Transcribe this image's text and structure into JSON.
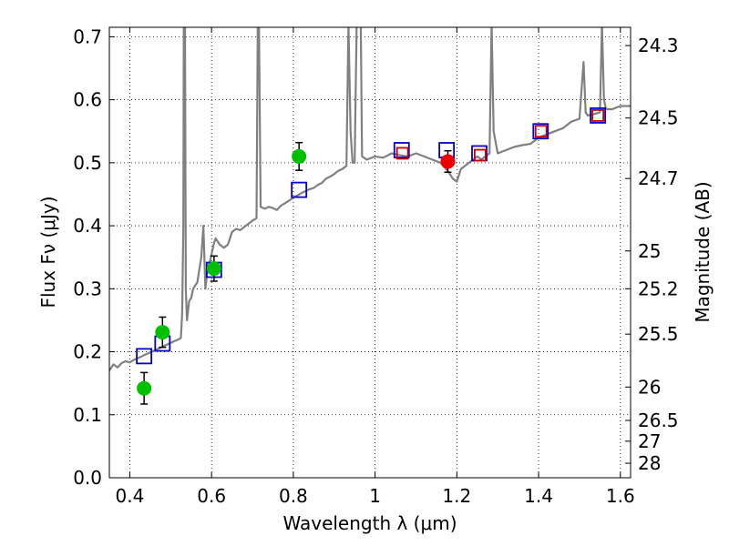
{
  "chart_data": {
    "type": "scatter",
    "xlabel": "Wavelength  λ (μm)",
    "ylabel": "Flux  Fν  (μJy)",
    "y2label": "Magnitude (AB)",
    "xlim": [
      0.35,
      1.625
    ],
    "ylim": [
      0.0,
      0.715
    ],
    "grid": true,
    "x_ticks": [
      0.4,
      0.6,
      0.8,
      1.0,
      1.2,
      1.4,
      1.6
    ],
    "x_tick_labels": [
      "0.4",
      "0.6",
      "0.8",
      "1",
      "1.2",
      "1.4",
      "1.6"
    ],
    "y_ticks": [
      0.0,
      0.1,
      0.2,
      0.3,
      0.4,
      0.5,
      0.6,
      0.7
    ],
    "y_tick_labels": [
      "0.0",
      "0.1",
      "0.2",
      "0.3",
      "0.4",
      "0.5",
      "0.6",
      "0.7"
    ],
    "y2_ticks": [
      {
        "label": "24.3",
        "flux": 0.686
      },
      {
        "label": "24.5",
        "flux": 0.571
      },
      {
        "label": "24.7",
        "flux": 0.475
      },
      {
        "label": "25",
        "flux": 0.36
      },
      {
        "label": "25.2",
        "flux": 0.3
      },
      {
        "label": "25.5",
        "flux": 0.228
      },
      {
        "label": "26",
        "flux": 0.144
      },
      {
        "label": "26.5",
        "flux": 0.091
      },
      {
        "label": "27",
        "flux": 0.058
      },
      {
        "label": "28",
        "flux": 0.023
      }
    ],
    "series": [
      {
        "name": "model spectrum",
        "kind": "line",
        "color": "#808080",
        "points": [
          [
            0.35,
            0.17
          ],
          [
            0.36,
            0.18
          ],
          [
            0.37,
            0.175
          ],
          [
            0.38,
            0.182
          ],
          [
            0.39,
            0.185
          ],
          [
            0.4,
            0.183
          ],
          [
            0.41,
            0.187
          ],
          [
            0.42,
            0.19
          ],
          [
            0.43,
            0.193
          ],
          [
            0.44,
            0.196
          ],
          [
            0.45,
            0.199
          ],
          [
            0.46,
            0.202
          ],
          [
            0.47,
            0.205
          ],
          [
            0.48,
            0.208
          ],
          [
            0.49,
            0.211
          ],
          [
            0.5,
            0.214
          ],
          [
            0.51,
            0.217
          ],
          [
            0.52,
            0.22
          ],
          [
            0.525,
            0.222
          ],
          [
            0.528,
            0.26
          ],
          [
            0.531,
            0.4
          ],
          [
            0.532,
            0.72
          ],
          [
            0.535,
            0.72
          ],
          [
            0.537,
            0.3
          ],
          [
            0.54,
            0.25
          ],
          [
            0.545,
            0.28
          ],
          [
            0.55,
            0.285
          ],
          [
            0.555,
            0.3
          ],
          [
            0.56,
            0.305
          ],
          [
            0.565,
            0.31
          ],
          [
            0.57,
            0.33
          ],
          [
            0.575,
            0.35
          ],
          [
            0.58,
            0.4
          ],
          [
            0.585,
            0.3
          ],
          [
            0.59,
            0.33
          ],
          [
            0.595,
            0.34
          ],
          [
            0.6,
            0.355
          ],
          [
            0.605,
            0.37
          ],
          [
            0.61,
            0.38
          ],
          [
            0.615,
            0.375
          ],
          [
            0.62,
            0.37
          ],
          [
            0.63,
            0.365
          ],
          [
            0.64,
            0.37
          ],
          [
            0.65,
            0.39
          ],
          [
            0.66,
            0.395
          ],
          [
            0.67,
            0.393
          ],
          [
            0.68,
            0.398
          ],
          [
            0.69,
            0.403
          ],
          [
            0.7,
            0.408
          ],
          [
            0.71,
            0.412
          ],
          [
            0.713,
            0.72
          ],
          [
            0.716,
            0.72
          ],
          [
            0.72,
            0.43
          ],
          [
            0.73,
            0.427
          ],
          [
            0.74,
            0.43
          ],
          [
            0.75,
            0.428
          ],
          [
            0.76,
            0.425
          ],
          [
            0.77,
            0.432
          ],
          [
            0.78,
            0.436
          ],
          [
            0.79,
            0.44
          ],
          [
            0.8,
            0.445
          ],
          [
            0.81,
            0.448
          ],
          [
            0.82,
            0.452
          ],
          [
            0.83,
            0.455
          ],
          [
            0.84,
            0.458
          ],
          [
            0.85,
            0.46
          ],
          [
            0.86,
            0.465
          ],
          [
            0.87,
            0.468
          ],
          [
            0.88,
            0.475
          ],
          [
            0.89,
            0.478
          ],
          [
            0.9,
            0.482
          ],
          [
            0.91,
            0.487
          ],
          [
            0.92,
            0.49
          ],
          [
            0.93,
            0.495
          ],
          [
            0.935,
            0.72
          ],
          [
            0.94,
            0.55
          ],
          [
            0.945,
            0.5
          ],
          [
            0.95,
            0.5
          ],
          [
            0.955,
            0.72
          ],
          [
            0.965,
            0.72
          ],
          [
            0.968,
            0.51
          ],
          [
            0.98,
            0.505
          ],
          [
            1.0,
            0.51
          ],
          [
            1.02,
            0.508
          ],
          [
            1.04,
            0.515
          ],
          [
            1.06,
            0.512
          ],
          [
            1.08,
            0.51
          ],
          [
            1.1,
            0.515
          ],
          [
            1.12,
            0.51
          ],
          [
            1.14,
            0.505
          ],
          [
            1.16,
            0.5
          ],
          [
            1.18,
            0.485
          ],
          [
            1.19,
            0.475
          ],
          [
            1.2,
            0.47
          ],
          [
            1.21,
            0.49
          ],
          [
            1.22,
            0.495
          ],
          [
            1.23,
            0.5
          ],
          [
            1.24,
            0.505
          ],
          [
            1.25,
            0.51
          ],
          [
            1.26,
            0.505
          ],
          [
            1.27,
            0.51
          ],
          [
            1.28,
            0.515
          ],
          [
            1.285,
            0.72
          ],
          [
            1.29,
            0.55
          ],
          [
            1.3,
            0.515
          ],
          [
            1.32,
            0.52
          ],
          [
            1.34,
            0.525
          ],
          [
            1.36,
            0.528
          ],
          [
            1.38,
            0.53
          ],
          [
            1.4,
            0.54
          ],
          [
            1.42,
            0.545
          ],
          [
            1.44,
            0.55
          ],
          [
            1.46,
            0.555
          ],
          [
            1.48,
            0.565
          ],
          [
            1.5,
            0.57
          ],
          [
            1.51,
            0.66
          ],
          [
            1.515,
            0.58
          ],
          [
            1.52,
            0.575
          ],
          [
            1.54,
            0.578
          ],
          [
            1.55,
            0.58
          ],
          [
            1.555,
            0.72
          ],
          [
            1.56,
            0.6
          ],
          [
            1.565,
            0.585
          ],
          [
            1.58,
            0.585
          ],
          [
            1.6,
            0.59
          ],
          [
            1.625,
            0.59
          ]
        ]
      },
      {
        "name": "model photometry",
        "kind": "open-square",
        "color": "#0000cc",
        "points": [
          [
            0.435,
            0.193
          ],
          [
            0.48,
            0.213
          ],
          [
            0.606,
            0.33
          ],
          [
            0.814,
            0.457
          ],
          [
            1.065,
            0.52
          ],
          [
            1.175,
            0.52
          ],
          [
            1.255,
            0.515
          ],
          [
            1.405,
            0.55
          ],
          [
            1.545,
            0.575
          ]
        ]
      },
      {
        "name": "measured flux (red squares)",
        "kind": "open-square-small",
        "color": "#cc0000",
        "points": [
          [
            1.067,
            0.515
          ],
          [
            1.257,
            0.512
          ],
          [
            1.406,
            0.55
          ],
          [
            1.545,
            0.575
          ]
        ]
      },
      {
        "name": "observed photometry",
        "kind": "filled-circle",
        "color": "#00c000",
        "points": [
          {
            "x": 0.435,
            "y": 0.142,
            "err": 0.025
          },
          {
            "x": 0.48,
            "y": 0.231,
            "err": 0.024
          },
          {
            "x": 0.606,
            "y": 0.332,
            "err": 0.02
          },
          {
            "x": 0.814,
            "y": 0.51,
            "err": 0.022
          }
        ]
      },
      {
        "name": "observed photometry (red)",
        "kind": "filled-circle",
        "color": "#ee0000",
        "points": [
          {
            "x": 1.178,
            "y": 0.502,
            "err": 0.017
          }
        ]
      }
    ]
  }
}
